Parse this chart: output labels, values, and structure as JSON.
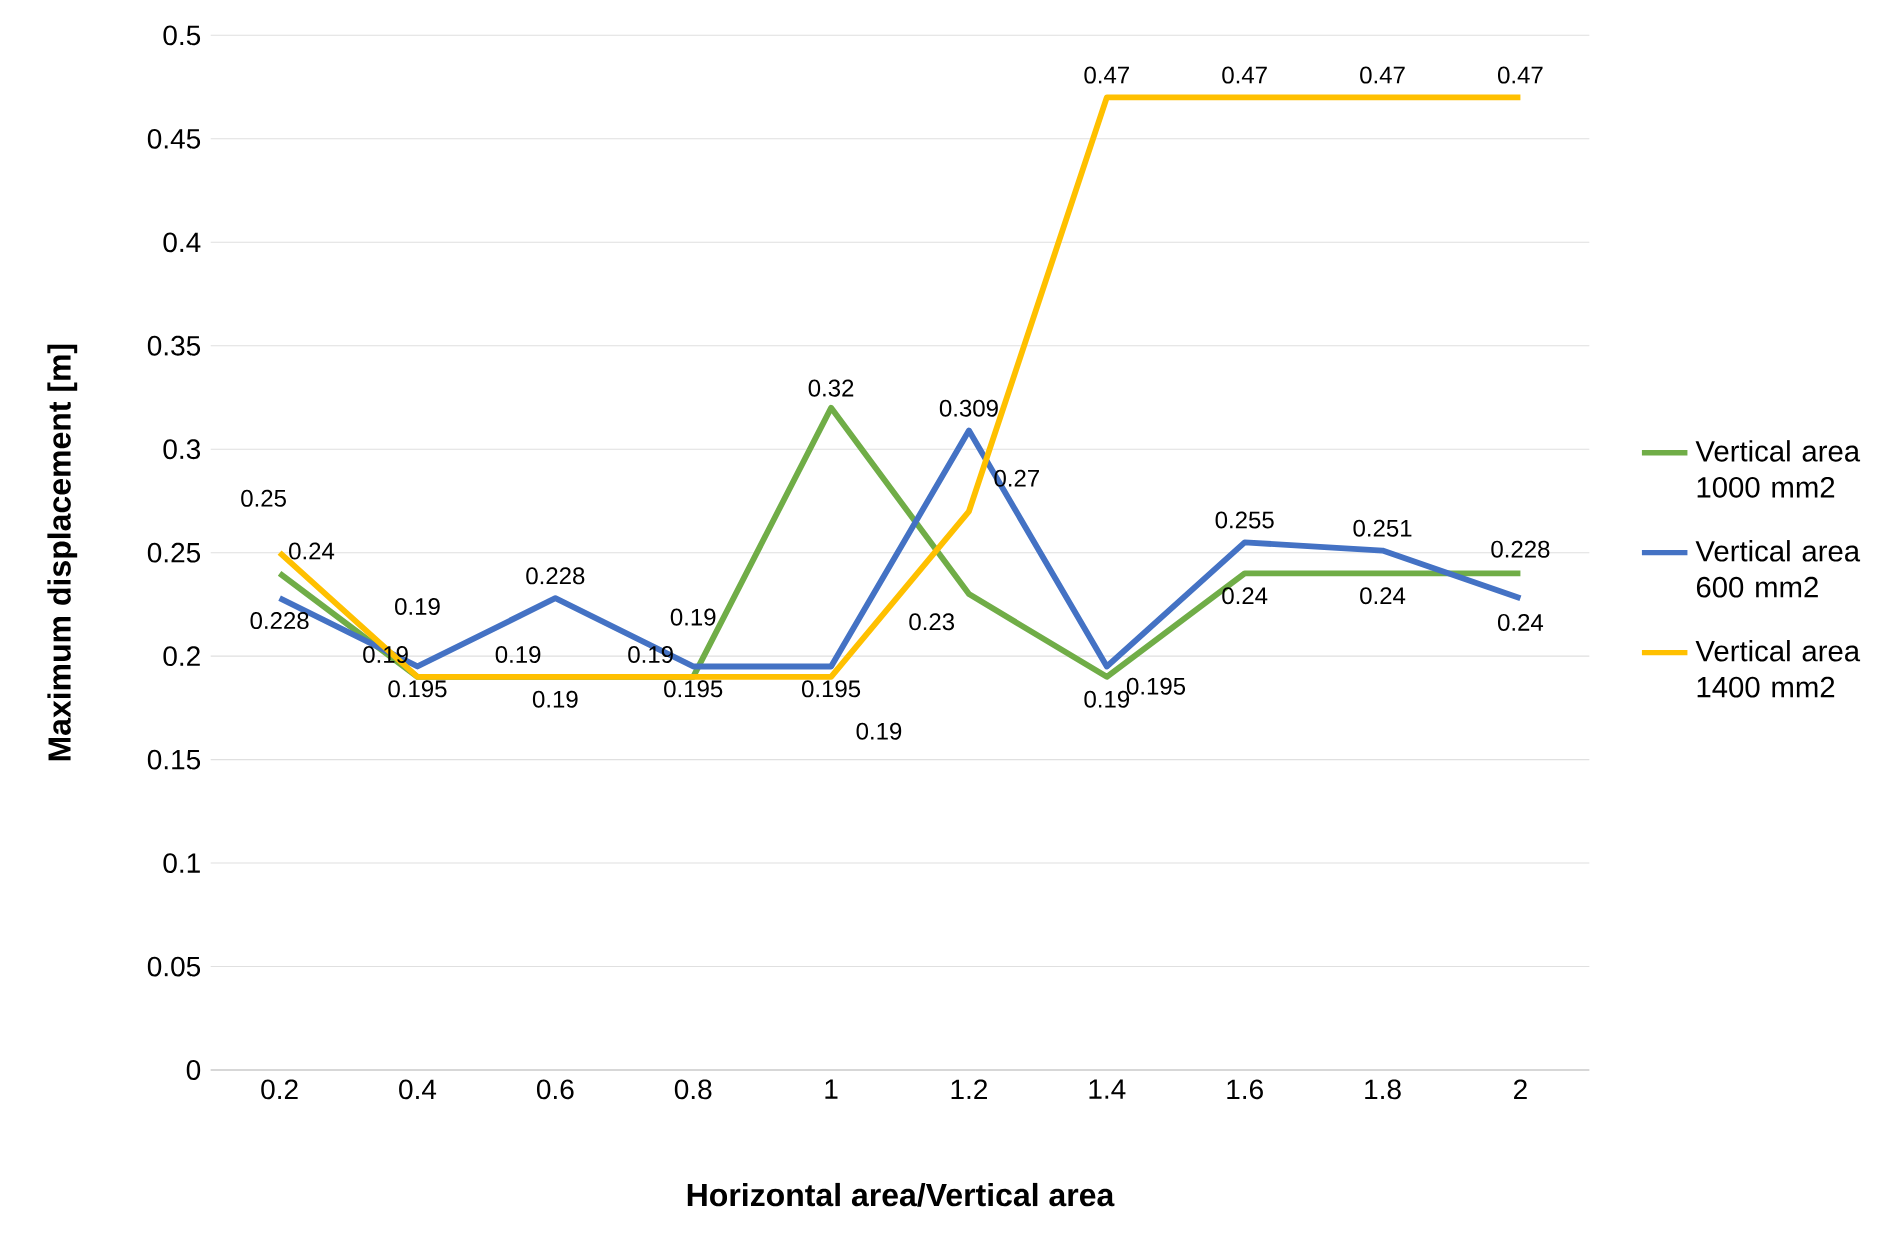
{
  "chart_data": {
    "type": "line",
    "xlabel": "Horizontal area/Vertical area",
    "ylabel": "Maximum displacement [m]",
    "categories": [
      "0.2",
      "0.4",
      "0.6",
      "0.8",
      "1",
      "1.2",
      "1.4",
      "1.6",
      "1.8",
      "2"
    ],
    "ylim": [
      0,
      0.5
    ],
    "yticks": [
      0,
      0.05,
      0.1,
      0.15,
      0.2,
      0.25,
      0.3,
      0.35,
      0.4,
      0.45,
      0.5
    ],
    "grid": "y",
    "legend": "right",
    "data_labels": true,
    "marker": "none",
    "line_style": "solid",
    "series": [
      {
        "name": "Vertical area 1000 mm2",
        "color": "#70ad47",
        "values": [
          0.24,
          0.19,
          0.19,
          0.19,
          0.32,
          0.23,
          0.19,
          0.24,
          0.24,
          0.24
        ]
      },
      {
        "name": "Vertical area 600 mm2",
        "color": "#4472c4",
        "values": [
          0.228,
          0.195,
          0.228,
          0.195,
          0.195,
          0.309,
          0.195,
          0.255,
          0.251,
          0.228
        ]
      },
      {
        "name": "Vertical area 1400 mm2",
        "color": "#ffc000",
        "values": [
          0.25,
          0.19,
          0.19,
          0.19,
          0.19,
          0.27,
          0.47,
          0.47,
          0.47,
          0.47
        ]
      }
    ]
  }
}
